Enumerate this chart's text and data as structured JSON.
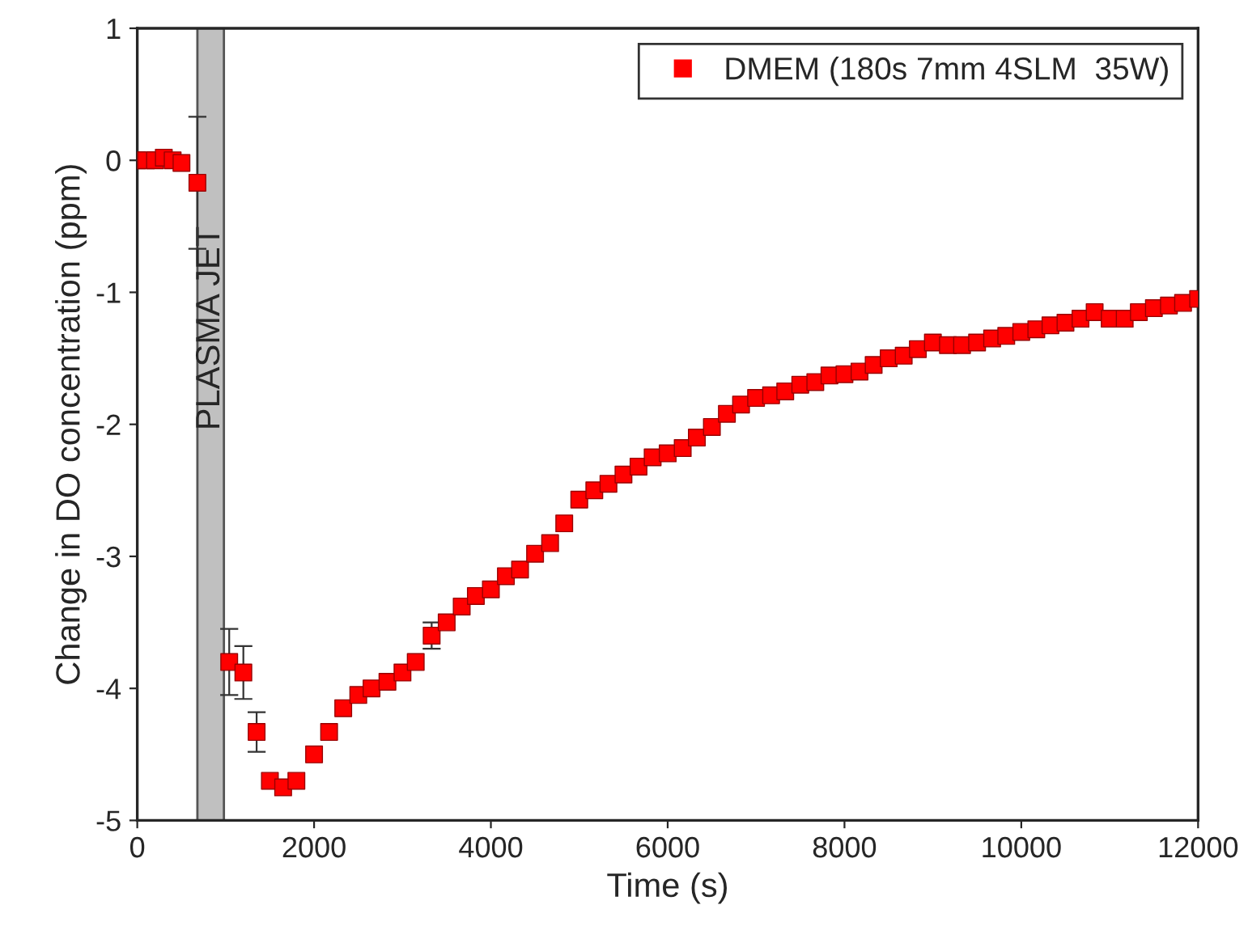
{
  "chart_data": {
    "type": "scatter",
    "xlabel": "Time (s)",
    "ylabel": "Change in DO concentration (ppm)",
    "x": [
      0,
      100,
      200,
      300,
      400,
      500,
      680,
      1040,
      1200,
      1350,
      1500,
      1650,
      1800,
      2000,
      2170,
      2330,
      2500,
      2650,
      2830,
      3000,
      3150,
      3330,
      3500,
      3670,
      3830,
      4000,
      4170,
      4330,
      4500,
      4670,
      4830,
      5000,
      5170,
      5330,
      5500,
      5670,
      5830,
      6000,
      6170,
      6330,
      6500,
      6670,
      6830,
      7000,
      7170,
      7330,
      7500,
      7670,
      7830,
      8000,
      8170,
      8330,
      8500,
      8670,
      8830,
      9000,
      9170,
      9330,
      9500,
      9670,
      9830,
      10000,
      10170,
      10330,
      10500,
      10670,
      10830,
      11000,
      11170,
      11330,
      11500,
      11670,
      11830,
      12000
    ],
    "series": [
      {
        "name": "DMEM (180s 7mm 4SLM  35W)",
        "color": "#ff0000",
        "values": [
          0,
          0,
          0,
          0.02,
          0,
          -0.02,
          -0.17,
          -3.8,
          -3.88,
          -4.33,
          -4.7,
          -4.75,
          -4.7,
          -4.5,
          -4.33,
          -4.15,
          -4.05,
          -4.0,
          -3.95,
          -3.88,
          -3.8,
          -3.6,
          -3.5,
          -3.38,
          -3.3,
          -3.25,
          -3.15,
          -3.1,
          -2.98,
          -2.9,
          -2.75,
          -2.57,
          -2.5,
          -2.45,
          -2.38,
          -2.32,
          -2.25,
          -2.22,
          -2.18,
          -2.1,
          -2.02,
          -1.92,
          -1.85,
          -1.8,
          -1.78,
          -1.75,
          -1.7,
          -1.68,
          -1.63,
          -1.62,
          -1.6,
          -1.55,
          -1.5,
          -1.48,
          -1.43,
          -1.38,
          -1.4,
          -1.4,
          -1.38,
          -1.35,
          -1.33,
          -1.3,
          -1.28,
          -1.25,
          -1.23,
          -1.2,
          -1.15,
          -1.2,
          -1.2,
          -1.15,
          -1.12,
          -1.1,
          -1.08,
          -1.05
        ],
        "errors": [
          null,
          null,
          null,
          null,
          null,
          null,
          0.5,
          0.25,
          0.2,
          0.15,
          null,
          null,
          null,
          null,
          null,
          null,
          null,
          null,
          null,
          null,
          null,
          0.1,
          null,
          null,
          null,
          null,
          null,
          null,
          null,
          null,
          null,
          null,
          null,
          null,
          null,
          null,
          null,
          null,
          null,
          null,
          null,
          null,
          null,
          null,
          null,
          null,
          null,
          null,
          null,
          null,
          null,
          null,
          null,
          null,
          null,
          null,
          null,
          null,
          null,
          null,
          null,
          null,
          null,
          null,
          null,
          null,
          null,
          null,
          null,
          null,
          null,
          null,
          null,
          null
        ]
      }
    ],
    "xlim": [
      0,
      12000
    ],
    "xticks": [
      0,
      2000,
      4000,
      6000,
      8000,
      10000,
      12000
    ],
    "ylim": [
      -5,
      1
    ],
    "yticks": [
      -5,
      -4,
      -3,
      -2,
      -1,
      0,
      1
    ],
    "bands": [
      {
        "axis": "x",
        "from": 680,
        "to": 980,
        "label": "PLASMA JET",
        "color": "#c0c0c0"
      }
    ],
    "marker": "square",
    "legend": "top right",
    "grid": false
  }
}
